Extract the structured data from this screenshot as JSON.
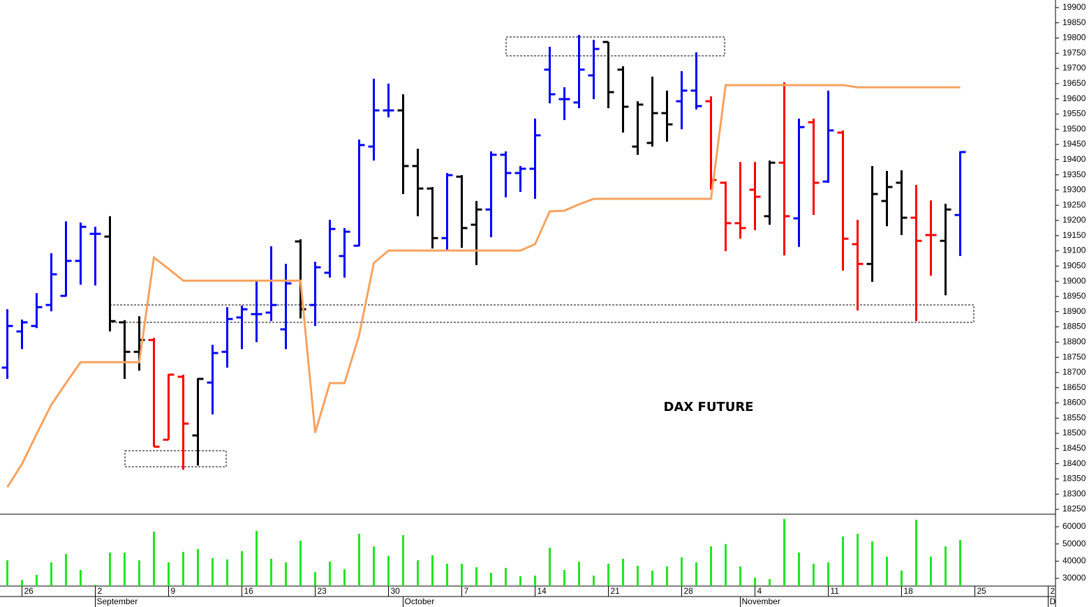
{
  "chart_data": {
    "type": "ohlc",
    "title": "DAX FUTURE",
    "x": [
      0,
      1,
      2,
      3,
      4,
      5,
      6,
      7,
      8,
      9,
      10,
      11,
      12,
      13,
      14,
      15,
      16,
      17,
      18,
      19,
      20,
      21,
      22,
      23,
      24,
      25,
      26,
      27,
      28,
      29,
      30,
      31,
      32,
      33,
      34,
      35,
      36,
      37,
      38,
      39,
      40,
      41,
      42,
      43,
      44,
      45,
      46,
      47,
      48,
      49,
      50,
      51,
      52,
      53,
      54,
      55,
      56,
      57,
      58,
      59,
      60,
      61,
      62,
      63,
      64,
      65
    ],
    "open": [
      18716,
      18835,
      18853,
      18922,
      18952,
      19067,
      19156,
      19147,
      18865,
      18768,
      18807,
      18479,
      18686,
      18493,
      18667,
      18768,
      18881,
      18892,
      18897,
      18842,
      19131,
      18922,
      19028,
      19083,
      19117,
      19443,
      19562,
      19562,
      19379,
      19305,
      19142,
      19344,
      19186,
      19236,
      19416,
      19356,
      19370,
      19696,
      19599,
      19588,
      19677,
      19787,
      19696,
      19443,
      19455,
      19553,
      19592,
      19627,
      19592,
      19324,
      19191,
      19301,
      19214,
      19390,
      19207,
      19523,
      19328,
      19489,
      19122,
      19057,
      19264,
      19324,
      19209,
      19152,
      19133,
      19218
    ],
    "high": [
      18908,
      18874,
      18961,
      19092,
      19197,
      19193,
      19179,
      19214,
      18872,
      18885,
      18814,
      18695,
      18693,
      18681,
      18791,
      18915,
      18920,
      19000,
      19115,
      19057,
      19138,
      19064,
      19202,
      19175,
      19466,
      19666,
      19650,
      19615,
      19436,
      19310,
      19356,
      19349,
      19264,
      19427,
      19427,
      19379,
      19535,
      19771,
      19638,
      19810,
      19794,
      19787,
      19707,
      19592,
      19673,
      19627,
      19691,
      19753,
      19608,
      19328,
      19392,
      19392,
      19397,
      19654,
      19535,
      19535,
      19627,
      19496,
      19202,
      19379,
      19363,
      19365,
      19317,
      19266,
      19255,
      19427
    ],
    "low": [
      18679,
      18777,
      18846,
      18901,
      18950,
      18989,
      18986,
      18835,
      18679,
      18706,
      18456,
      18479,
      18380,
      18394,
      18562,
      18716,
      18777,
      18800,
      18869,
      18777,
      18878,
      18853,
      19012,
      19012,
      19115,
      19397,
      19539,
      19287,
      19214,
      19108,
      19099,
      19110,
      19053,
      19145,
      19276,
      19294,
      19271,
      19585,
      19530,
      19569,
      19599,
      19569,
      19489,
      19416,
      19443,
      19459,
      19500,
      19565,
      19301,
      19099,
      19140,
      19168,
      19186,
      19085,
      19113,
      19218,
      19324,
      19035,
      18904,
      18998,
      19181,
      19152,
      18869,
      19018,
      18954,
      19083
    ],
    "close": [
      18853,
      18865,
      18915,
      19023,
      19067,
      19179,
      19156,
      18869,
      18768,
      18807,
      18456,
      18693,
      18532,
      18679,
      18764,
      18876,
      18908,
      18892,
      18922,
      18993,
      18908,
      19046,
      19172,
      19163,
      19448,
      19562,
      19562,
      19379,
      19305,
      19142,
      19349,
      19175,
      19236,
      19416,
      19356,
      19370,
      19480,
      19615,
      19599,
      19696,
      19764,
      19622,
      19574,
      19581,
      19553,
      19516,
      19627,
      19576,
      19333,
      19191,
      19175,
      19278,
      19390,
      19214,
      19507,
      19324,
      19496,
      19140,
      19057,
      19287,
      19310,
      19209,
      19133,
      19152,
      19236,
      19425
    ],
    "colors": [
      "blue",
      "blue",
      "blue",
      "blue",
      "blue",
      "blue",
      "blue",
      "black",
      "black",
      "black",
      "red",
      "red",
      "red",
      "black",
      "blue",
      "blue",
      "blue",
      "blue",
      "blue",
      "blue",
      "black",
      "blue",
      "blue",
      "blue",
      "blue",
      "blue",
      "blue",
      "black",
      "black",
      "black",
      "blue",
      "black",
      "black",
      "blue",
      "blue",
      "blue",
      "blue",
      "blue",
      "blue",
      "blue",
      "blue",
      "black",
      "black",
      "black",
      "black",
      "black",
      "blue",
      "blue",
      "red",
      "red",
      "red",
      "red",
      "black",
      "red",
      "blue",
      "red",
      "blue",
      "red",
      "red",
      "black",
      "black",
      "black",
      "red",
      "red",
      "black",
      "blue"
    ],
    "line": {
      "color": "#f7a25e",
      "values": [
        18323,
        18399,
        18498,
        18594,
        18665,
        18734,
        18734,
        18734,
        18734,
        18734,
        19078,
        19041,
        19002,
        19002,
        19002,
        19002,
        19002,
        19002,
        19002,
        19002,
        19002,
        18502,
        18665,
        18665,
        18823,
        19060,
        19101,
        19101,
        19101,
        19101,
        19101,
        19101,
        19101,
        19101,
        19101,
        19101,
        19122,
        19230,
        19232,
        19253,
        19271,
        19271,
        19271,
        19271,
        19271,
        19271,
        19271,
        19271,
        19271,
        19645,
        19645,
        19645,
        19645,
        19645,
        19645,
        19645,
        19645,
        19645,
        19638,
        19638,
        19638,
        19638,
        19638,
        19638,
        19638,
        19638
      ]
    },
    "xlim": [
      -0.5,
      71.5
    ],
    "xticks": [
      {
        "value": 1,
        "label": "26"
      },
      {
        "value": 6,
        "label": "2"
      },
      {
        "value": 11,
        "label": "9"
      },
      {
        "value": 16,
        "label": "16"
      },
      {
        "value": 21,
        "label": "23"
      },
      {
        "value": 26,
        "label": "30"
      },
      {
        "value": 31,
        "label": "7"
      },
      {
        "value": 36,
        "label": "14"
      },
      {
        "value": 41,
        "label": "21"
      },
      {
        "value": 46,
        "label": "28"
      },
      {
        "value": 51,
        "label": "4"
      },
      {
        "value": 56,
        "label": "11"
      },
      {
        "value": 61,
        "label": "18"
      },
      {
        "value": 66,
        "label": "25"
      },
      {
        "value": 71,
        "label": "2"
      }
    ],
    "month_ticks": [
      {
        "value": 6,
        "label": "September"
      },
      {
        "value": 27,
        "label": "October"
      },
      {
        "value": 50,
        "label": "November"
      },
      {
        "value": 71,
        "label": "D"
      }
    ],
    "ylim": [
      18234,
      19925
    ],
    "yticks": [
      18250,
      18300,
      18350,
      18400,
      18450,
      18500,
      18550,
      18600,
      18650,
      18700,
      18750,
      18800,
      18850,
      18900,
      18950,
      19000,
      19050,
      19100,
      19150,
      19200,
      19250,
      19300,
      19350,
      19400,
      19450,
      19500,
      19550,
      19600,
      19650,
      19700,
      19750,
      19800,
      19850,
      19900
    ],
    "grid": false,
    "volume": {
      "color": "#22e622",
      "values": [
        40500,
        29000,
        32000,
        39300,
        44200,
        34900,
        26300,
        45000,
        45000,
        40500,
        57200,
        39300,
        45400,
        47000,
        41800,
        41000,
        45800,
        57600,
        41400,
        39300,
        51900,
        33600,
        39700,
        35300,
        55900,
        48600,
        43000,
        55100,
        40500,
        43400,
        38500,
        38500,
        36500,
        33200,
        36100,
        31200,
        31600,
        47800,
        34900,
        39700,
        31600,
        38500,
        41400,
        37300,
        34500,
        36900,
        42200,
        39300,
        48600,
        49900,
        36900,
        30400,
        29600,
        64500,
        45000,
        38500,
        39300,
        54300,
        55900,
        51500,
        42600,
        34500,
        64100,
        42600,
        48600,
        52300
      ],
      "ylim": [
        25500,
        67300
      ],
      "yticks": [
        30000,
        40000,
        50000,
        60000
      ]
    }
  }
}
